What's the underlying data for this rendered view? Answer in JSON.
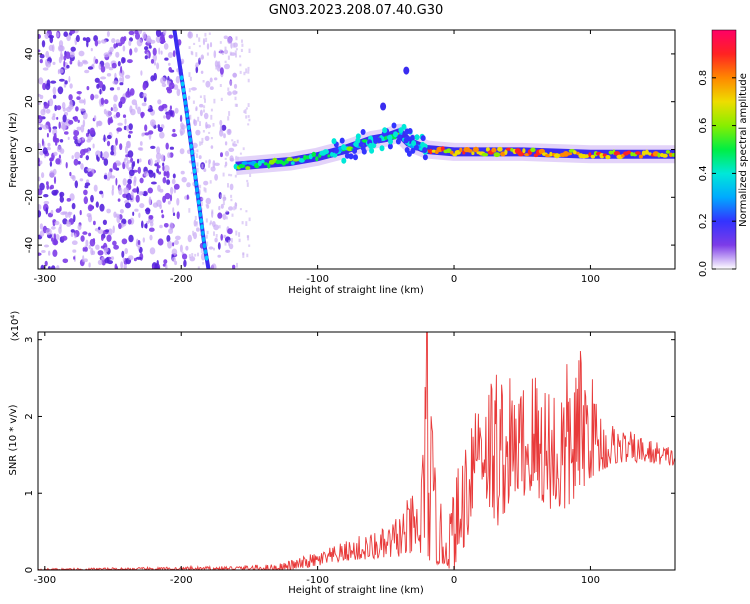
{
  "title": "GN03.2023.208.07.40.G30",
  "chart_data": [
    {
      "type": "heatmap",
      "xlabel": "Height of straight line (km)",
      "ylabel": "Frequency (Hz)",
      "xlim": [
        -305,
        162
      ],
      "ylim": [
        -50,
        50
      ],
      "x_ticks": [
        -300,
        -200,
        -100,
        0,
        100
      ],
      "y_ticks": [
        -40,
        -20,
        0,
        20,
        40
      ],
      "colorbar": {
        "label": "Normalized spectral amplitude",
        "range": [
          0.0,
          1.0
        ],
        "ticks": [
          0.0,
          0.2,
          0.4,
          0.6,
          0.8
        ],
        "tick_labels": [
          "0.0",
          "0.2",
          "0.4",
          "0.6",
          "0.8"
        ]
      },
      "features": {
        "steep_line": [
          [
            -205,
            50
          ],
          [
            -197,
            20
          ],
          [
            -190,
            -10
          ],
          [
            -183,
            -40
          ],
          [
            -180,
            -50
          ]
        ],
        "ridge": [
          [
            -160,
            -7
          ],
          [
            -140,
            -6
          ],
          [
            -120,
            -5
          ],
          [
            -100,
            -3
          ],
          [
            -80,
            0
          ],
          [
            -60,
            4
          ],
          [
            -50,
            5
          ],
          [
            -40,
            7
          ],
          [
            -33,
            3
          ],
          [
            -20,
            0
          ],
          [
            0,
            -1
          ],
          [
            50,
            -1
          ],
          [
            100,
            -2
          ],
          [
            162,
            -2
          ]
        ],
        "outliers": [
          [
            -52,
            18
          ],
          [
            -35,
            33
          ]
        ]
      }
    },
    {
      "type": "line",
      "xlabel": "Height of straight line (km)",
      "ylabel": "SNR (10 * v/v)",
      "y_multiplier": "(x10⁴)",
      "xlim": [
        -305,
        162
      ],
      "ylim": [
        0,
        3.1
      ],
      "x_ticks": [
        -300,
        -200,
        -100,
        0,
        100
      ],
      "y_ticks": [
        0,
        1,
        2,
        3
      ],
      "color": "#e83a3a",
      "envelope": [
        [
          -305,
          0.02
        ],
        [
          -200,
          0.04
        ],
        [
          -170,
          0.05
        ],
        [
          -130,
          0.08
        ],
        [
          -110,
          0.18
        ],
        [
          -90,
          0.3
        ],
        [
          -70,
          0.45
        ],
        [
          -50,
          0.55
        ],
        [
          -35,
          0.9
        ],
        [
          -25,
          1.1
        ],
        [
          -20,
          3.1
        ],
        [
          -12,
          0.9
        ],
        [
          -5,
          0.8
        ],
        [
          5,
          1.5
        ],
        [
          12,
          2.5
        ],
        [
          25,
          2.55
        ],
        [
          30,
          2.9
        ],
        [
          45,
          2.4
        ],
        [
          60,
          2.8
        ],
        [
          75,
          2.6
        ],
        [
          95,
          2.95
        ],
        [
          110,
          2.0
        ],
        [
          130,
          1.8
        ],
        [
          162,
          1.6
        ]
      ],
      "baseline": [
        [
          -305,
          0.0
        ],
        [
          -120,
          0.0
        ],
        [
          -100,
          0.05
        ],
        [
          -80,
          0.12
        ],
        [
          -50,
          0.15
        ],
        [
          -30,
          0.2
        ],
        [
          -10,
          0.05
        ],
        [
          0,
          0.0
        ],
        [
          10,
          0.4
        ],
        [
          18,
          1.3
        ],
        [
          30,
          0.5
        ],
        [
          45,
          1.0
        ],
        [
          60,
          0.9
        ],
        [
          80,
          0.7
        ],
        [
          100,
          1.2
        ],
        [
          120,
          1.4
        ],
        [
          140,
          1.4
        ],
        [
          162,
          1.35
        ]
      ]
    }
  ]
}
